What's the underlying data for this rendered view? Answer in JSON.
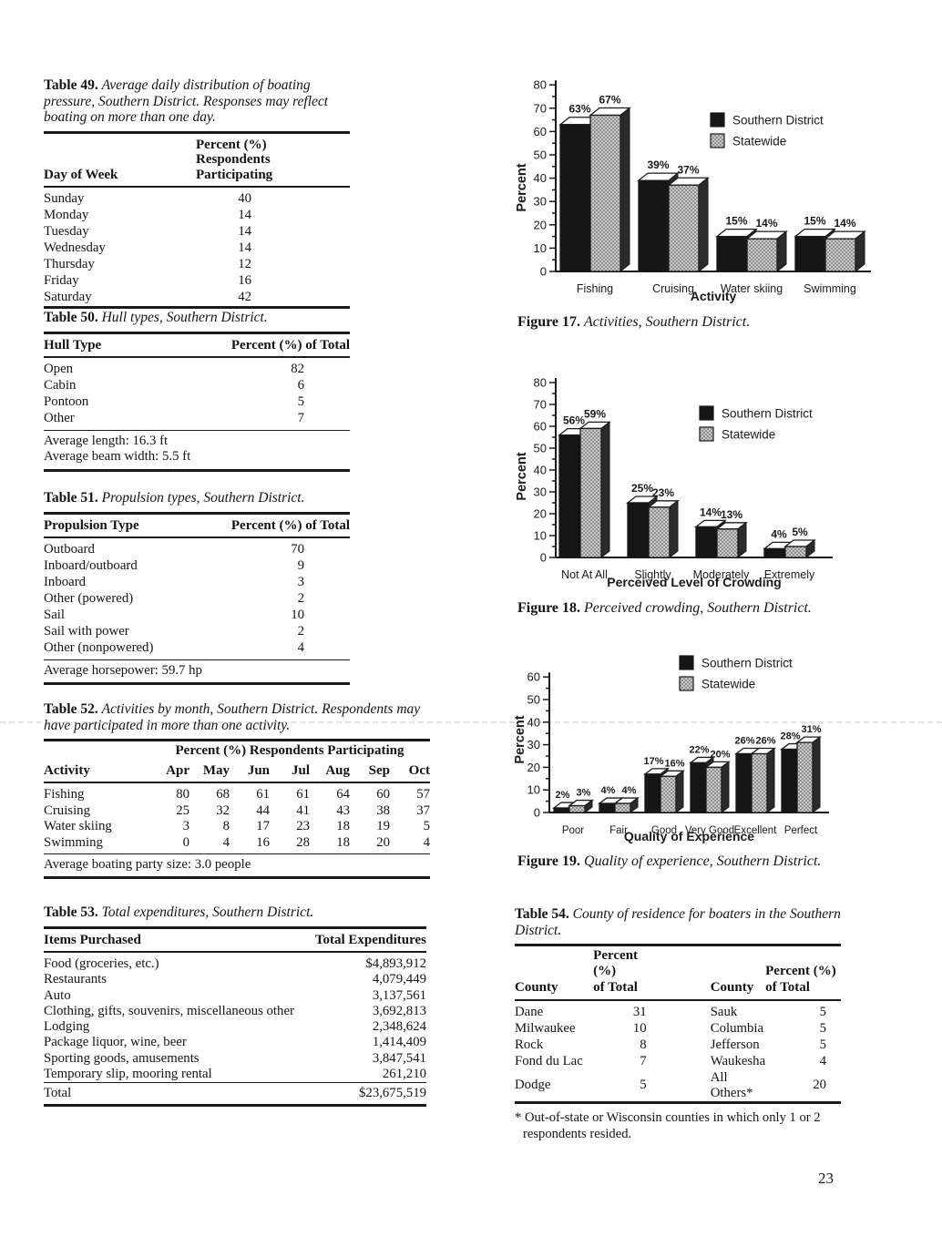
{
  "page": {
    "number": "23"
  },
  "legend": {
    "series1": "Southern District",
    "series2": "Statewide"
  },
  "colors": {
    "ink": "#1a1a1a",
    "bar_southern": "#161616",
    "bar_statewide": "#c9c9c9",
    "bar_statewide_dot": "#8f8f8f",
    "bar_top": "#ffffff",
    "bar_side": "#2b2b2b"
  },
  "tables": {
    "t49": {
      "label": "Table 49.",
      "title": "Average daily distribution of boating pressure, Southern District. Responses may reflect boating on more than one day.",
      "col1": "Day of Week",
      "col2a": "Percent (%)",
      "col2b": "Respondents Participating",
      "rows": [
        [
          "Sunday",
          "40"
        ],
        [
          "Monday",
          "14"
        ],
        [
          "Tuesday",
          "14"
        ],
        [
          "Wednesday",
          "14"
        ],
        [
          "Thursday",
          "12"
        ],
        [
          "Friday",
          "16"
        ],
        [
          "Saturday",
          "42"
        ]
      ]
    },
    "t50": {
      "label": "Table 50.",
      "title": "Hull types, Southern District.",
      "col1": "Hull Type",
      "col2": "Percent (%) of Total",
      "rows": [
        [
          "Open",
          "82"
        ],
        [
          "Cabin",
          "6"
        ],
        [
          "Pontoon",
          "5"
        ],
        [
          "Other",
          "7"
        ]
      ],
      "notes": [
        "Average length: 16.3 ft",
        "Average beam width: 5.5 ft"
      ]
    },
    "t51": {
      "label": "Table 51.",
      "title": "Propulsion types, Southern District.",
      "col1": "Propulsion Type",
      "col2": "Percent (%) of Total",
      "rows": [
        [
          "Outboard",
          "70"
        ],
        [
          "Inboard/outboard",
          "9"
        ],
        [
          "Inboard",
          "3"
        ],
        [
          "Other (powered)",
          "2"
        ],
        [
          "Sail",
          "10"
        ],
        [
          "Sail with power",
          "2"
        ],
        [
          "Other (nonpowered)",
          "4"
        ]
      ],
      "notes": [
        "Average horsepower: 59.7 hp"
      ]
    },
    "t52": {
      "label": "Table 52.",
      "title": "Activities by month, Southern District. Respondents may have participated in more than one activity.",
      "span_header": "Percent (%) Respondents Participating",
      "col1": "Activity",
      "columns": [
        "Apr",
        "May",
        "Jun",
        "Jul",
        "Aug",
        "Sep",
        "Oct"
      ],
      "rows": [
        [
          "Fishing",
          "80",
          "68",
          "61",
          "61",
          "64",
          "60",
          "57"
        ],
        [
          "Cruising",
          "25",
          "32",
          "44",
          "41",
          "43",
          "38",
          "37"
        ],
        [
          "Water skiing",
          "3",
          "8",
          "17",
          "23",
          "18",
          "19",
          "5"
        ],
        [
          "Swimming",
          "0",
          "4",
          "16",
          "28",
          "18",
          "20",
          "4"
        ]
      ],
      "notes": [
        "Average boating party size: 3.0 people"
      ]
    },
    "t53": {
      "label": "Table 53.",
      "title": "Total expenditures, Southern District.",
      "col1": "Items Purchased",
      "col2": "Total Expenditures",
      "rows": [
        [
          "Food (groceries, etc.)",
          "$4,893,912"
        ],
        [
          "Restaurants",
          "4,079,449"
        ],
        [
          "Auto",
          "3,137,561"
        ],
        [
          "Clothing, gifts, souvenirs, miscellaneous other",
          "3,692,813"
        ],
        [
          "Lodging",
          "2,348,624"
        ],
        [
          "Package liquor, wine, beer",
          "1,414,409"
        ],
        [
          "Sporting goods, amusements",
          "3,847,541"
        ],
        [
          "Temporary slip, mooring rental",
          "261,210"
        ]
      ],
      "total": [
        "Total",
        "$23,675,519"
      ]
    },
    "t54": {
      "label": "Table 54.",
      "title": "County of residence for boaters in the Southern District.",
      "h_county": "County",
      "h_pct": "Percent (%)",
      "h_of_total": "of Total",
      "rows": [
        [
          "Dane",
          "31",
          "Sauk",
          "5"
        ],
        [
          "Milwaukee",
          "10",
          "Columbia",
          "5"
        ],
        [
          "Rock",
          "8",
          "Jefferson",
          "5"
        ],
        [
          "Fond du Lac",
          "7",
          "Waukesha",
          "4"
        ],
        [
          "Dodge",
          "5",
          "All Others*",
          "20"
        ]
      ],
      "footnote": "* Out-of-state or Wisconsin counties in which only 1 or 2 respondents resided."
    }
  },
  "figures": {
    "fig17": {
      "label": "Figure 17.",
      "caption": "Activities, Southern District."
    },
    "fig18": {
      "label": "Figure 18.",
      "caption": "Perceived crowding, Southern District."
    },
    "fig19": {
      "label": "Figure 19.",
      "caption": "Quality of experience, Southern District."
    }
  },
  "chart_data": [
    {
      "id": "fig17",
      "type": "bar",
      "title": "",
      "xlabel": "Activity",
      "ylabel": "Percent",
      "ylim": [
        0,
        80
      ],
      "ytick_step": 10,
      "grid": false,
      "legend_position": "upper-right",
      "value_suffix": "%",
      "categories": [
        "Fishing",
        "Cruising",
        "Water skiing",
        "Swimming"
      ],
      "series": [
        {
          "name": "Southern District",
          "values": [
            63,
            39,
            15,
            15
          ]
        },
        {
          "name": "Statewide",
          "values": [
            67,
            37,
            14,
            14
          ]
        }
      ]
    },
    {
      "id": "fig18",
      "type": "bar",
      "title": "",
      "xlabel": "Perceived Level of Crowding",
      "ylabel": "Percent",
      "ylim": [
        0,
        80
      ],
      "ytick_step": 10,
      "grid": false,
      "legend_position": "upper-right",
      "value_suffix": "%",
      "categories": [
        "Not At All",
        "Slightly",
        "Moderately",
        "Extremely"
      ],
      "series": [
        {
          "name": "Southern District",
          "values": [
            56,
            25,
            14,
            4
          ]
        },
        {
          "name": "Statewide",
          "values": [
            59,
            23,
            13,
            5
          ]
        }
      ]
    },
    {
      "id": "fig19",
      "type": "bar",
      "title": "",
      "xlabel": "Quality of Experience",
      "ylabel": "Percent",
      "ylim": [
        0,
        60
      ],
      "ytick_step": 10,
      "grid": false,
      "legend_position": "upper-right",
      "value_suffix": "%",
      "categories": [
        "Poor",
        "Fair",
        "Good",
        "Very Good",
        "Excellent",
        "Perfect"
      ],
      "series": [
        {
          "name": "Southern District",
          "values": [
            2,
            4,
            17,
            22,
            26,
            28
          ]
        },
        {
          "name": "Statewide",
          "values": [
            3,
            4,
            16,
            20,
            26,
            31
          ]
        }
      ]
    }
  ]
}
